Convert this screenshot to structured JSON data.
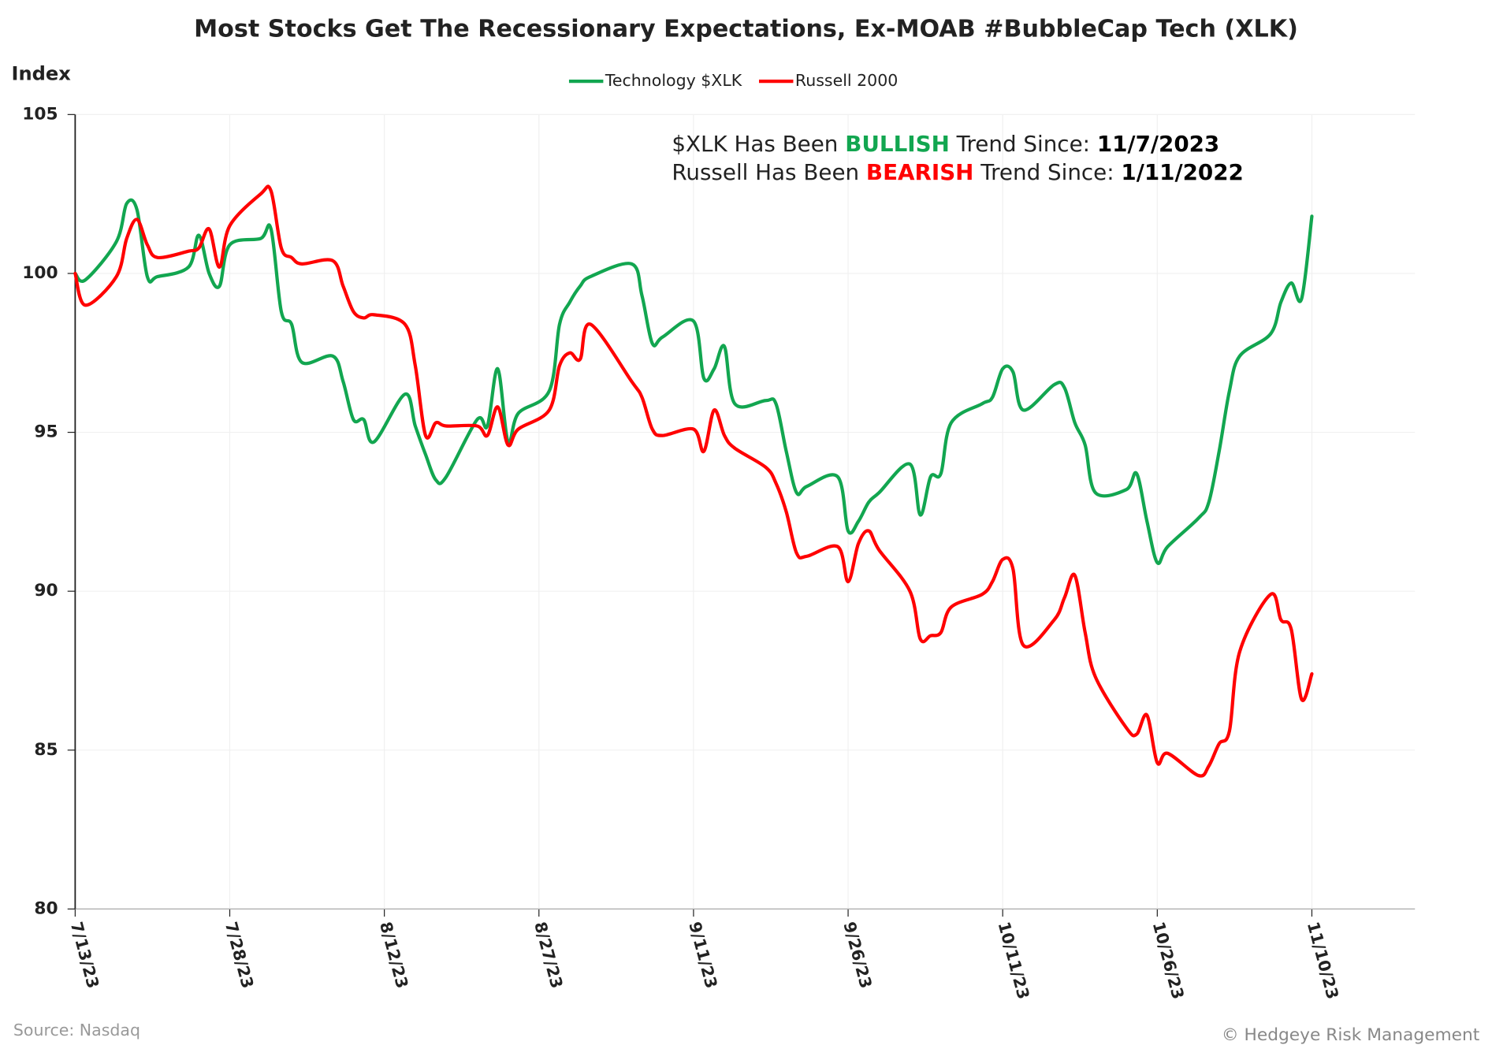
{
  "chart_data": {
    "type": "line",
    "title": "Most Stocks Get The Recessionary Expectations, Ex-MOAB #BubbleCap Tech (XLK)",
    "y_label": "Index",
    "source": "Source: Nasdaq",
    "credit": "© Hedgeye Risk Management",
    "annotations": [
      [
        "$XLK Has Been ",
        "BULLISH",
        " Trend Since: ",
        "11/7/2023"
      ],
      [
        "Russell Has Been ",
        "BEARISH",
        " Trend Since: ",
        "1/11/2022"
      ]
    ],
    "annotation_colors": [
      "#222222",
      "#12a650",
      "#222222",
      "#000000"
    ],
    "annotation_colors_2": [
      "#222222",
      "#ff0000",
      "#222222",
      "#000000"
    ],
    "x": [
      "7/13/23",
      "7/14/23",
      "7/17/23",
      "7/18/23",
      "7/19/23",
      "7/20/23",
      "7/21/23",
      "7/24/23",
      "7/25/23",
      "7/26/23",
      "7/27/23",
      "7/28/23",
      "7/31/23",
      "8/1/23",
      "8/2/23",
      "8/3/23",
      "8/4/23",
      "8/7/23",
      "8/8/23",
      "8/9/23",
      "8/10/23",
      "8/11/23",
      "8/14/23",
      "8/15/23",
      "8/16/23",
      "8/17/23",
      "8/18/23",
      "8/21/23",
      "8/22/23",
      "8/23/23",
      "8/24/23",
      "8/25/23",
      "8/28/23",
      "8/29/23",
      "8/30/23",
      "8/31/23",
      "9/1/23",
      "9/5/23",
      "9/6/23",
      "9/7/23",
      "9/8/23",
      "9/11/23",
      "9/12/23",
      "9/13/23",
      "9/14/23",
      "9/15/23",
      "9/18/23",
      "9/19/23",
      "9/20/23",
      "9/21/23",
      "9/22/23",
      "9/25/23",
      "9/26/23",
      "9/27/23",
      "9/28/23",
      "9/29/23",
      "10/2/23",
      "10/3/23",
      "10/4/23",
      "10/5/23",
      "10/6/23",
      "10/9/23",
      "10/10/23",
      "10/11/23",
      "10/12/23",
      "10/13/23",
      "10/16/23",
      "10/17/23",
      "10/18/23",
      "10/19/23",
      "10/20/23",
      "10/23/23",
      "10/24/23",
      "10/25/23",
      "10/26/23",
      "10/27/23",
      "10/30/23",
      "10/31/23",
      "11/1/23",
      "11/2/23",
      "11/3/23",
      "11/6/23",
      "11/7/23",
      "11/8/23",
      "11/9/23",
      "11/10/23"
    ],
    "series": [
      {
        "name": "Technology $XLK",
        "color": "#12a650",
        "values": [
          100,
          99.8,
          101,
          102.2,
          102,
          99.9,
          99.9,
          100.2,
          101.2,
          100,
          99.6,
          100.9,
          101.1,
          101.4,
          98.8,
          98.4,
          97.2,
          97.4,
          96.6,
          95.4,
          95.4,
          94.7,
          96.2,
          95.2,
          94.3,
          93.5,
          93.6,
          95.4,
          95.2,
          97,
          94.7,
          95.6,
          96.3,
          98.4,
          99.1,
          99.6,
          99.9,
          100.3,
          99.3,
          97.8,
          98,
          98.5,
          96.7,
          97,
          97.7,
          95.9,
          96,
          95.9,
          94.4,
          93.1,
          93.3,
          93.6,
          91.9,
          92.2,
          92.8,
          93.1,
          94,
          92.4,
          93.6,
          93.7,
          95.3,
          95.9,
          96.1,
          97,
          96.9,
          95.7,
          96.5,
          96.4,
          95.3,
          94.6,
          93.1,
          93.2,
          93.7,
          92.2,
          90.9,
          91.4,
          92.3,
          92.8,
          94.4,
          96.3,
          97.4,
          98.1,
          99.1,
          99.7,
          99.2,
          101.8
        ]
      },
      {
        "name": "Russell 2000",
        "color": "#ff0000",
        "values": [
          100,
          99,
          99.9,
          101.1,
          101.7,
          100.9,
          100.5,
          100.7,
          100.8,
          101.4,
          100.2,
          101.5,
          102.5,
          102.6,
          100.8,
          100.5,
          100.3,
          100.4,
          99.6,
          98.8,
          98.6,
          98.7,
          98.4,
          97.1,
          94.9,
          95.3,
          95.2,
          95.2,
          94.9,
          95.8,
          94.6,
          95.1,
          95.7,
          97.1,
          97.5,
          97.3,
          98.4,
          96.6,
          96.1,
          95.1,
          94.9,
          95.1,
          94.4,
          95.7,
          94.9,
          94.5,
          93.9,
          93.4,
          92.5,
          91.2,
          91.1,
          91.4,
          90.3,
          91.5,
          91.9,
          91.3,
          90,
          88.5,
          88.6,
          88.7,
          89.5,
          89.9,
          90.3,
          91,
          90.7,
          88.3,
          89.1,
          89.8,
          90.5,
          88.7,
          87.3,
          85.7,
          85.5,
          86.1,
          84.6,
          84.9,
          84.2,
          84.5,
          85.2,
          85.6,
          88.1,
          89.9,
          89.1,
          88.8,
          86.6,
          87.4
        ]
      }
    ],
    "xlim": [
      "7/13/23",
      "11/20/23"
    ],
    "xticks": [
      "7/13/23",
      "7/28/23",
      "8/12/23",
      "8/27/23",
      "9/11/23",
      "9/26/23",
      "10/11/23",
      "10/26/23",
      "11/10/23"
    ],
    "ylim": [
      80,
      105
    ],
    "yticks": [
      80,
      85,
      90,
      95,
      100,
      105
    ],
    "grid": true
  }
}
